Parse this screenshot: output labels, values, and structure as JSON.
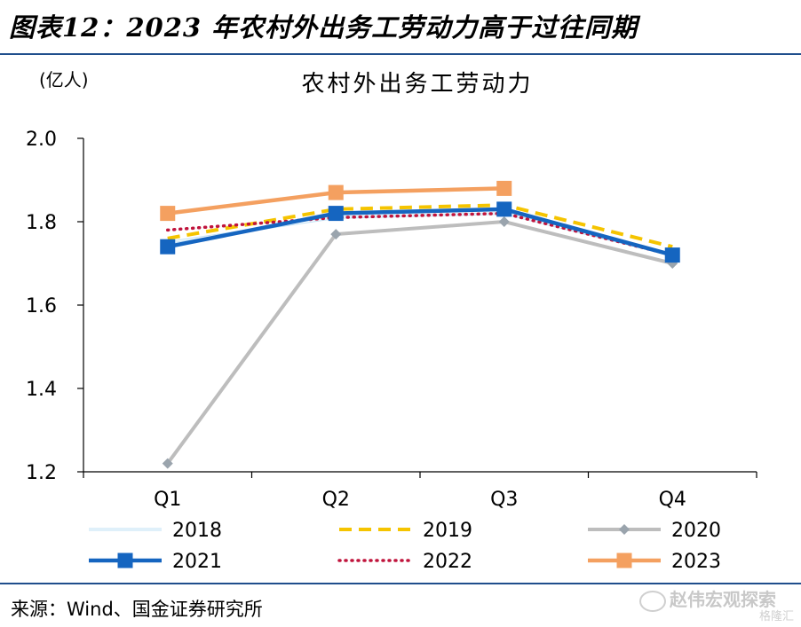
{
  "figure_title": "图表12：2023 年农村外出务工劳动力高于过往同期",
  "unit_label": "(亿人)",
  "source": "来源：Wind、国金证券研究所",
  "watermark": "赵伟宏观探索",
  "watermark_sub": "格隆汇",
  "chart_data": {
    "type": "line",
    "title": "农村外出务工劳动力",
    "ylabel": "(亿人)",
    "categories": [
      "Q1",
      "Q2",
      "Q3",
      "Q4"
    ],
    "ylim": [
      1.2,
      2.0
    ],
    "yticks": [
      "1.2",
      "1.4",
      "1.6",
      "1.8",
      "2.0"
    ],
    "legend_position": "bottom",
    "series": [
      {
        "name": "2018",
        "values": [
          1.75,
          1.81,
          1.82,
          1.72
        ],
        "color": "#bfe0f5",
        "style": "double",
        "marker": "none"
      },
      {
        "name": "2019",
        "values": [
          1.76,
          1.83,
          1.84,
          1.74
        ],
        "color": "#f5c400",
        "style": "dashed",
        "marker": "none"
      },
      {
        "name": "2020",
        "values": [
          1.22,
          1.77,
          1.8,
          1.7
        ],
        "color": "#bdbdbd",
        "style": "solid",
        "marker": "diamond"
      },
      {
        "name": "2021",
        "values": [
          1.74,
          1.82,
          1.83,
          1.72
        ],
        "color": "#1565c0",
        "style": "solid",
        "marker": "square"
      },
      {
        "name": "2022",
        "values": [
          1.78,
          1.81,
          1.82,
          1.72
        ],
        "color": "#c0143c",
        "style": "dotted",
        "marker": "none"
      },
      {
        "name": "2023",
        "values": [
          1.82,
          1.87,
          1.88,
          null
        ],
        "color": "#f4a060",
        "style": "solid",
        "marker": "square"
      }
    ]
  }
}
